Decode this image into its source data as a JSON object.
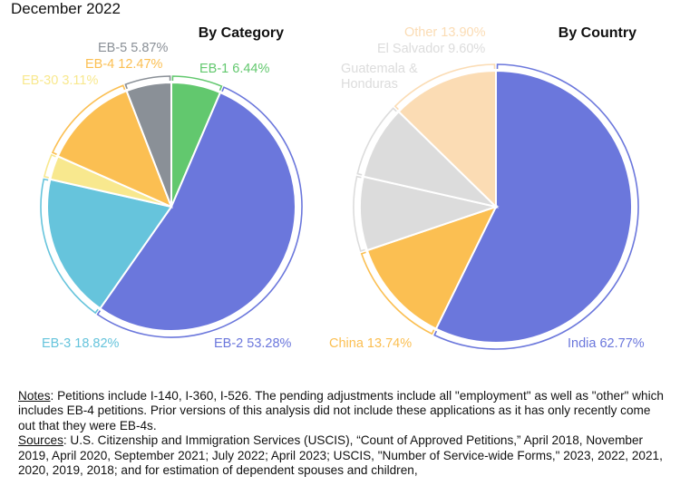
{
  "subtitle": "December 2022",
  "colors": {
    "EB-1": "#62c86e",
    "EB-2": "#6b77dc",
    "EB-3": "#66c4dc",
    "EB-30": "#f8e88e",
    "EB-4": "#fbbf52",
    "EB-5": "#8a9097",
    "India": "#6b77dc",
    "China": "#fbbf52",
    "Guatemala & Honduras": "#dcdcdc",
    "El Salvador": "#dcdcdc",
    "Other": "#fbdcb4"
  },
  "chart_data": [
    {
      "type": "pie",
      "title": "By Category",
      "slices": [
        {
          "name": "EB-1",
          "value": 6.44,
          "label": "EB-1 6.44%"
        },
        {
          "name": "EB-2",
          "value": 53.28,
          "label": "EB-2 53.28%"
        },
        {
          "name": "EB-3",
          "value": 18.82,
          "label": "EB-3 18.82%"
        },
        {
          "name": "EB-30",
          "value": 3.11,
          "label": "EB-30 3.11%"
        },
        {
          "name": "EB-4",
          "value": 12.47,
          "label": "EB-4 12.47%"
        },
        {
          "name": "EB-5",
          "value": 5.87,
          "label": "EB-5 5.87%"
        }
      ]
    },
    {
      "type": "pie",
      "title": "By Country",
      "slices": [
        {
          "name": "India",
          "value": 62.77,
          "label": "India 62.77%"
        },
        {
          "name": "China",
          "value": 13.74,
          "label": "China 13.74%"
        },
        {
          "name": "Guatemala & Honduras",
          "value": 9.6,
          "label": "Guatemala & Honduras"
        },
        {
          "name": "El Salvador",
          "value": 9.6,
          "label": "El Salvador 9.60%"
        },
        {
          "name": "Other",
          "value": 13.9,
          "label": "Other 13.90%"
        }
      ]
    }
  ],
  "notes": {
    "notes_label": "Notes",
    "notes_text": ": Petitions include I-140, I-360, I-526. The pending adjustments include all \"employment\" as well as \"other\" which includes EB-4 petitions. Prior versions of this analysis did not include these applications as it has only recently come out that they were EB-4s.",
    "sources_label": "Sources",
    "sources_text": ": U.S. Citizenship and Immigration Services (USCIS), “Count of Approved Petitions,” April 2018, November 2019, April 2020, September 2021; July 2022; April 2023; USCIS, \"Number of Service-wide Forms,\" 2023, 2022, 2021, 2020, 2019, 2018; and for estimation of dependent spouses and children,"
  }
}
